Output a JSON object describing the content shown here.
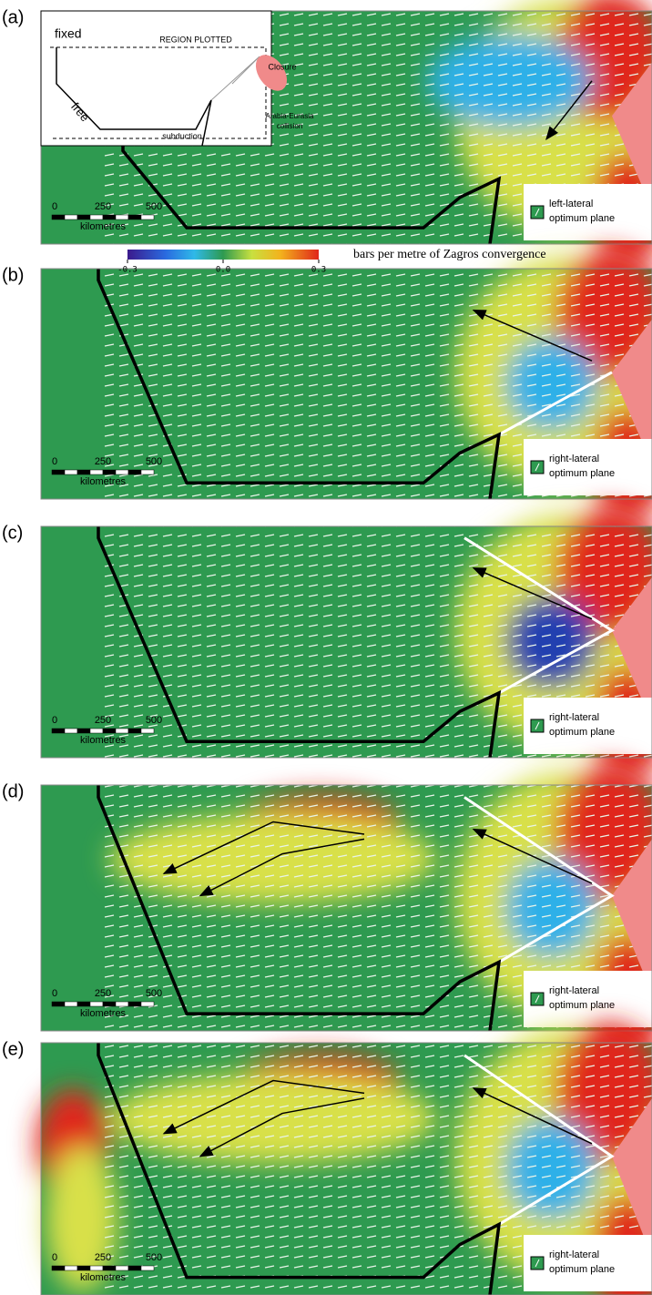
{
  "colorbar": {
    "range": [
      -0.3,
      0.3
    ],
    "ticks": [
      -0.3,
      {
        "value": 0,
        "label": "0.0"
      },
      0.3
    ],
    "label": "bars per metre of Zagros convergence"
  },
  "inset": {
    "fixed": "fixed",
    "free": "free",
    "region": "REGION PLOTTED",
    "closure": "Closure",
    "subduction": "subduction",
    "collision": [
      "Arabia-Eurasia",
      "collision"
    ]
  },
  "panels": [
    {
      "label": "(a)",
      "scale": [
        0,
        250,
        500
      ],
      "scale_unit": "kilometres",
      "legend": [
        "left-lateral",
        "optimum plane"
      ]
    },
    {
      "label": "(b)",
      "scale": [
        0,
        250,
        500
      ],
      "scale_unit": "kilometres",
      "legend": [
        "right-lateral",
        "optimum plane"
      ]
    },
    {
      "label": "(c)",
      "scale": [
        0,
        250,
        500
      ],
      "scale_unit": "kilometres",
      "legend": [
        "right-lateral",
        "optimum plane"
      ]
    },
    {
      "label": "(d)",
      "scale": [
        0,
        250,
        500
      ],
      "scale_unit": "kilometres",
      "legend": [
        "right-lateral",
        "optimum plane"
      ]
    },
    {
      "label": "(e)",
      "scale": [
        0,
        250,
        500
      ],
      "scale_unit": "kilometres",
      "legend": [
        "right-lateral",
        "optimum plane"
      ]
    }
  ]
}
